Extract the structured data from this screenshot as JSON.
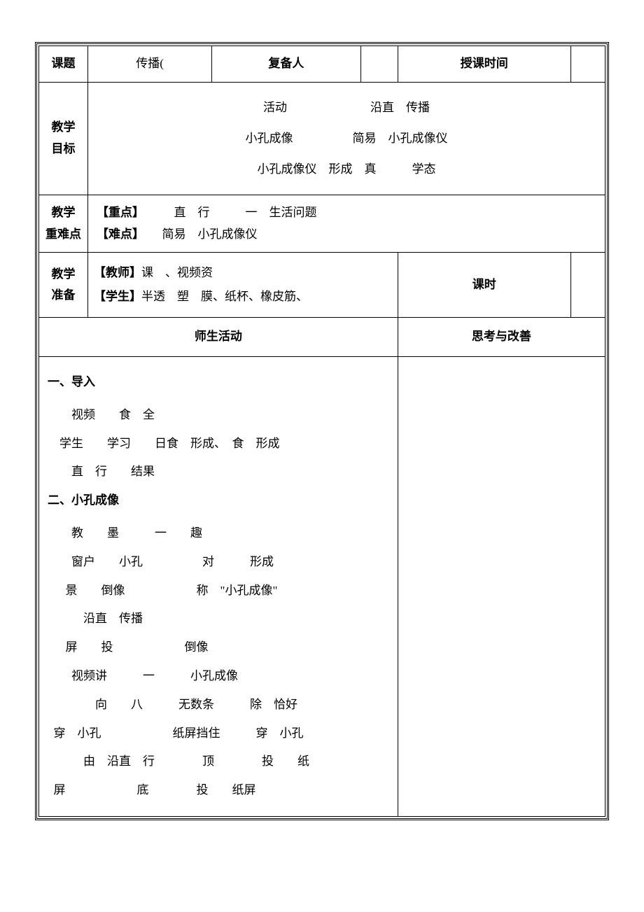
{
  "header": {
    "topic_label": "课题",
    "topic_value": "传播(",
    "reviewer_label": "复备人",
    "reviewer_value": "",
    "teach_time_label": "授课时间",
    "teach_time_value": ""
  },
  "goals": {
    "label": "教学\n目标",
    "line1_a": "活动",
    "line1_b": "沿直　传播",
    "line2_a": "小孔成像",
    "line2_b": "简易　小孔成像仪",
    "line3": "小孔成像仪　形成　真　　　学态"
  },
  "keypoints": {
    "label": "教学\n重难点",
    "key_label": "【重点】",
    "key_text": "　　　直　行　　　一　生活问题",
    "diff_label": "【难点】",
    "diff_text": "　　简易　小孔成像仪"
  },
  "prep": {
    "label": "教学\n准备",
    "teacher_label": "【教师】",
    "teacher_text": "课　、视频资",
    "student_label": "【学生】",
    "student_text": "半透　塑　膜、纸杯、橡皮筋、",
    "hours_label": "课时",
    "hours_value": ""
  },
  "activity_header": {
    "left": "师生活动",
    "right": "思考与改善"
  },
  "body": {
    "section1_title": "一、导入",
    "s1_line1": "视频　　食　全",
    "s1_line2": "学生　　学习　　日食　形成、　食　形成",
    "s1_line3": "直　行　　结果",
    "section2_title": "二、小孔成像",
    "s2_line1": "教　　墨　　　一　　趣",
    "s2_line2": "窗户　　小孔　　　　　对　　　形成",
    "s2_line3": "景　　倒像　　　　　　称　\"小孔成像\"",
    "s2_line4": "沿直　传播",
    "s2_line5": "屏　　投　　　　　　倒像",
    "s2_line6": "视频讲　　　一　　　小孔成像",
    "s2_line7": "向　　八　　　无数条　　　除　恰好",
    "s2_line8": "穿　小孔　　　　　　纸屏挡住　　　穿　小孔",
    "s2_line9": "由　沿直　行　　　　顶　　　　投　　纸",
    "s2_line10": "屏　　　　　　底　　　　投　　纸屏"
  },
  "styles": {
    "font_family": "SimSun",
    "border_color": "#000000",
    "background_color": "#ffffff",
    "base_fontsize": 17,
    "line_height": 2.4
  }
}
